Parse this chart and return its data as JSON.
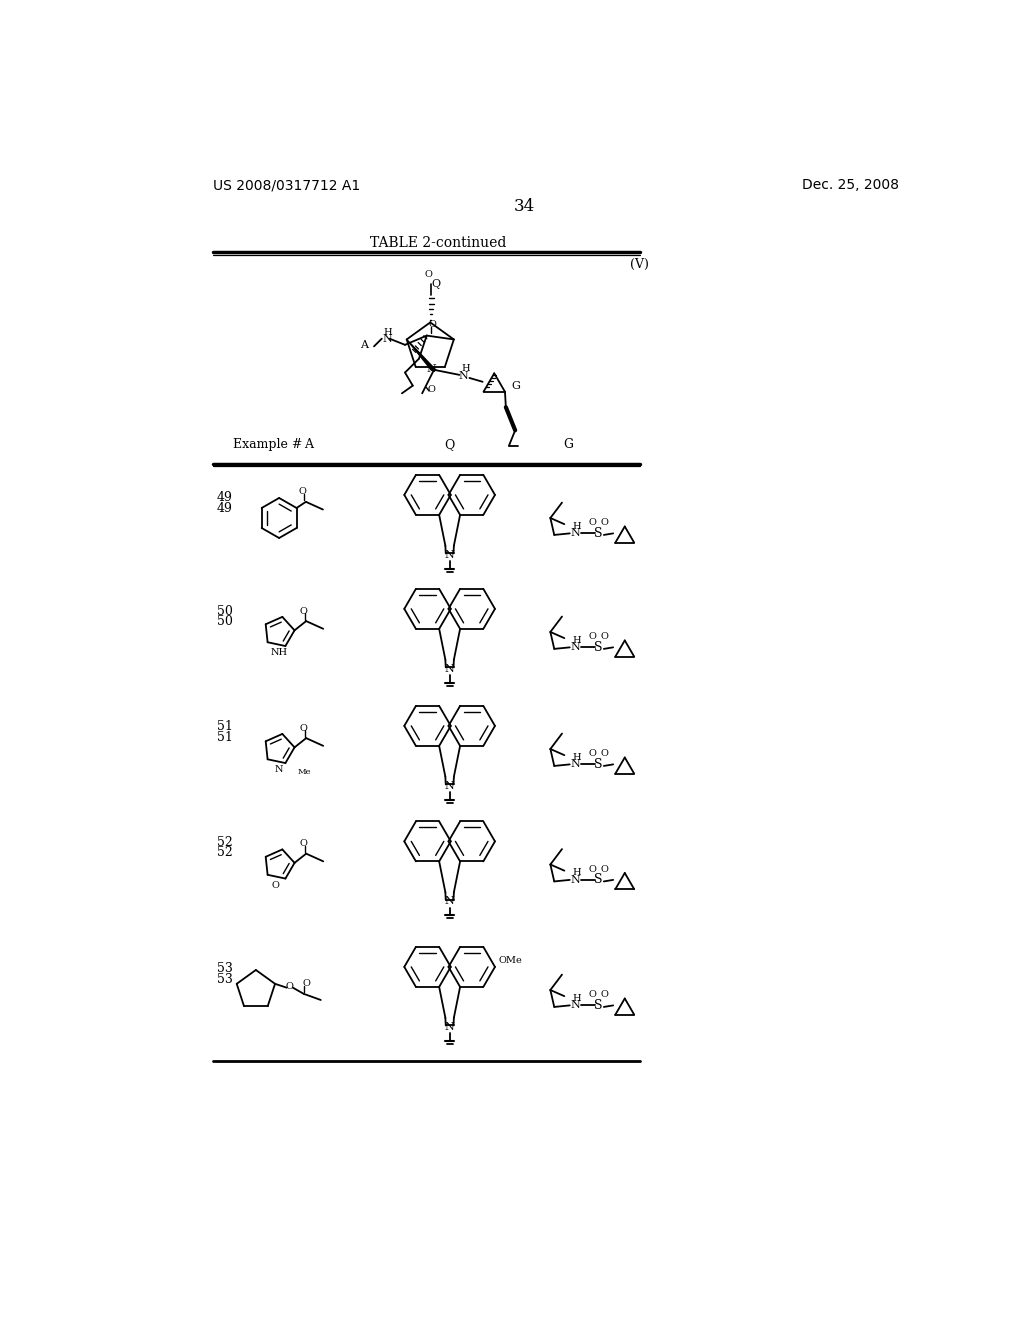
{
  "page_number": "34",
  "patent_number": "US 2008/0317712 A1",
  "patent_date": "Dec. 25, 2008",
  "table_title": "TABLE 2-continued",
  "formula_label": "(V)",
  "background_color": "#ffffff",
  "text_color": "#000000"
}
